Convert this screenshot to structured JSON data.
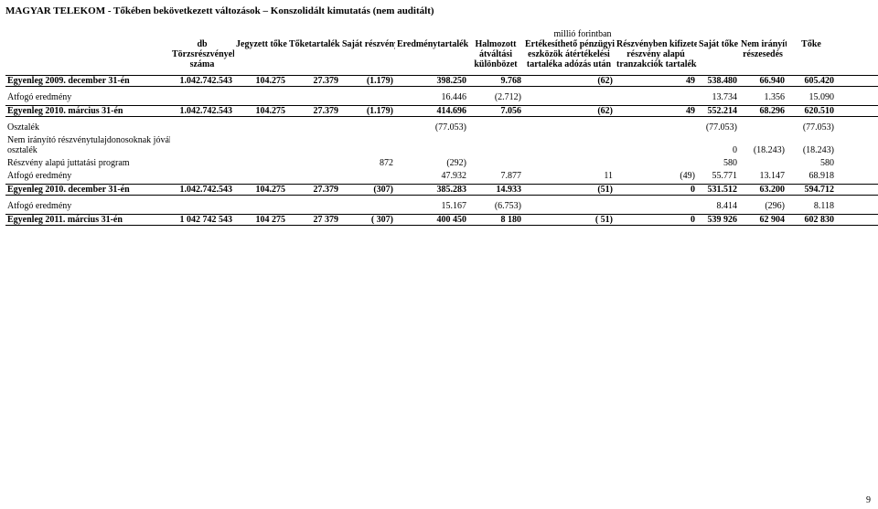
{
  "title": "MAGYAR TELEKOM - Tőkében bekövetkezett változások – Konszolidált kimutatás (nem auditált)",
  "unit": "millió forintban",
  "page_number": "9",
  "headers": {
    "c0_l1": "db",
    "c0_l2": "Törzsrészvények",
    "c0_l3": "száma",
    "c1": "Jegyzett tőke",
    "c2": "Tőketartalék",
    "c3": "Saját részvény",
    "c4": "Eredménytartalék",
    "c5_l1": "Halmozott",
    "c5_l2": "átváltási",
    "c5_l3": "különbözet",
    "c6_l1": "Értékesíthető pénzügyi",
    "c6_l2": "eszközök átértékelési",
    "c6_l3": "tartaléka adózás után",
    "c7_l1": "Részvényben kifizetett",
    "c7_l2": "részvény alapú",
    "c7_l3": "tranzakciók tartaléka",
    "c8": "Saját tőke",
    "c9_l1": "Nem irányító",
    "c9_l2": "részesedés",
    "c10": "Tőke"
  },
  "rows": [
    {
      "type": "balance",
      "label": "Egyenleg 2009. december 31-én",
      "v": [
        "1.042.742.543",
        "104.275",
        "27.379",
        "(1.179)",
        "398.250",
        "9.768",
        "(62)",
        "49",
        "538.480",
        "66.940",
        "605.420"
      ]
    },
    {
      "type": "line",
      "label": "Átfogó eredmény",
      "v": [
        "",
        "",
        "",
        "",
        "16.446",
        "(2.712)",
        "",
        "",
        "13.734",
        "1.356",
        "15.090"
      ]
    },
    {
      "type": "balance",
      "label": "Egyenleg 2010. március 31-én",
      "v": [
        "1.042.742.543",
        "104.275",
        "27.379",
        "(1.179)",
        "414.696",
        "7.056",
        "(62)",
        "49",
        "552.214",
        "68.296",
        "620.510"
      ]
    },
    {
      "type": "line",
      "label": "Osztalék",
      "v": [
        "",
        "",
        "",
        "",
        "(77.053)",
        "",
        "",
        "",
        "(77.053)",
        "",
        "(77.053)"
      ]
    },
    {
      "type": "line2",
      "label1": "Nem irányító részvénytulajdonosoknak jóváhagyott",
      "label2": "osztalék",
      "v": [
        "",
        "",
        "",
        "",
        "",
        "",
        "",
        "",
        "0",
        "(18.243)",
        "(18.243)"
      ]
    },
    {
      "type": "line",
      "label": "Részvény alapú juttatási program",
      "v": [
        "",
        "",
        "",
        "872",
        "(292)",
        "",
        "",
        "",
        "580",
        "",
        "580"
      ]
    },
    {
      "type": "line",
      "label": "Átfogó eredmény",
      "v": [
        "",
        "",
        "",
        "",
        "47.932",
        "7.877",
        "11",
        "(49)",
        "55.771",
        "13.147",
        "68.918"
      ]
    },
    {
      "type": "balance",
      "label": "Egyenleg 2010. december 31-én",
      "v": [
        "1.042.742.543",
        "104.275",
        "27.379",
        "(307)",
        "385.283",
        "14.933",
        "(51)",
        "0",
        "531.512",
        "63.200",
        "594.712"
      ]
    },
    {
      "type": "line",
      "label": "Átfogó eredmény",
      "v": [
        "",
        "",
        "",
        "",
        "15.167",
        "(6.753)",
        "",
        "",
        "8.414",
        "(296)",
        "8.118"
      ]
    },
    {
      "type": "balance",
      "label": "Egyenleg 2011. március 31-én",
      "v": [
        "1 042 742 543",
        "104 275",
        "27 379",
        "( 307)",
        "400 450",
        "8 180",
        "( 51)",
        "0",
        "539 926",
        "62 904",
        "602 830"
      ]
    }
  ]
}
